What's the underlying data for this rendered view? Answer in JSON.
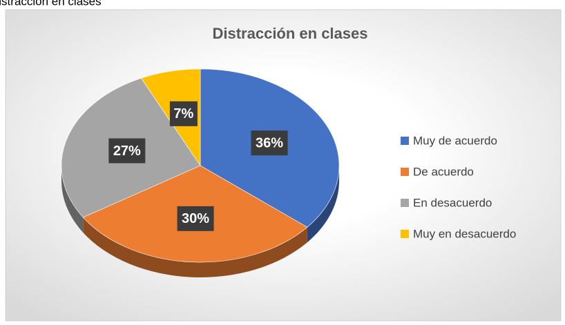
{
  "chart_data": {
    "type": "pie",
    "caption": "Distracción en clases",
    "title": "Distracción en clases",
    "categories": [
      "Muy de acuerdo",
      "De acuerdo",
      "En desacuerdo",
      "Muy en desacuerdo"
    ],
    "values": [
      36,
      30,
      27,
      7
    ],
    "value_labels": [
      "36%",
      "30%",
      "27%",
      "7%"
    ],
    "colors": [
      "#4472c4",
      "#ed7d31",
      "#a5a5a5",
      "#ffc000"
    ],
    "legend": "right"
  }
}
